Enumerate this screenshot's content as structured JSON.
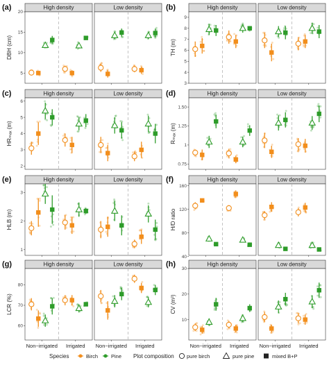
{
  "colors": {
    "birch": "#F28E1C",
    "pine": "#2E9C2A",
    "panel_border": "#333333",
    "strip_bg": "#D9D9D9",
    "divider": "#B5B5B5"
  },
  "strips": [
    "High density",
    "Low density"
  ],
  "x_categories": [
    "Non−irrigated",
    "Irrigated"
  ],
  "legend": {
    "species_title": "Species",
    "species": [
      {
        "key": "birch",
        "label": "Birch"
      },
      {
        "key": "pine",
        "label": "Pine"
      }
    ],
    "composition_title": "Plot composition",
    "composition": [
      {
        "key": "pure_birch",
        "label": "pure birch"
      },
      {
        "key": "pure_pine",
        "label": "pure pine"
      },
      {
        "key": "mixed",
        "label": "mixed B+P"
      }
    ]
  },
  "chart_data": [
    {
      "type": "scatter",
      "panel": "(a)",
      "ylabel": "DBH (cm)",
      "ylim": [
        2.5,
        20
      ],
      "yticks": [
        5,
        10,
        15,
        20
      ],
      "series": [
        {
          "density": "High density",
          "irrigation": "Non−irrigated",
          "birch_pure": [
            5.1,
            4.6,
            5.6
          ],
          "birch_mixed": [
            5.0,
            4.5,
            5.5
          ],
          "pine_pure": [
            11.8,
            11.2,
            12.4
          ],
          "pine_mixed": [
            13.1,
            12.2,
            14.1
          ]
        },
        {
          "density": "High density",
          "irrigation": "Irrigated",
          "birch_pure": [
            6.0,
            5.3,
            6.8
          ],
          "birch_mixed": [
            5.0,
            4.3,
            5.7
          ],
          "pine_pure": [
            11.7,
            11.0,
            12.4
          ],
          "pine_mixed": [
            13.6,
            13.3,
            13.9
          ]
        },
        {
          "density": "Low density",
          "irrigation": "Non−irrigated",
          "birch_pure": [
            6.3,
            5.3,
            7.3
          ],
          "birch_mixed": [
            4.8,
            3.9,
            5.7
          ],
          "pine_pure": [
            14.2,
            13.3,
            15.1
          ],
          "pine_mixed": [
            14.9,
            13.9,
            15.9
          ]
        },
        {
          "density": "Low density",
          "irrigation": "Irrigated",
          "birch_pure": [
            6.0,
            5.2,
            6.8
          ],
          "birch_mixed": [
            5.7,
            4.8,
            6.6
          ],
          "pine_pure": [
            14.2,
            13.3,
            15.1
          ],
          "pine_mixed": [
            14.8,
            13.7,
            15.9
          ]
        }
      ]
    },
    {
      "type": "scatter",
      "panel": "(b)",
      "ylabel": "TH (m)",
      "ylim": [
        3,
        9.5
      ],
      "yticks": [
        3,
        4,
        5,
        6,
        7,
        8,
        9
      ],
      "series": [
        {
          "density": "High density",
          "irrigation": "Non−irrigated",
          "birch_pure": [
            6.1,
            5.4,
            6.8
          ],
          "birch_mixed": [
            6.4,
            5.7,
            7.1
          ],
          "pine_pure": [
            7.9,
            7.4,
            8.4
          ],
          "pine_mixed": [
            7.8,
            7.3,
            8.3
          ]
        },
        {
          "density": "High density",
          "irrigation": "Irrigated",
          "birch_pure": [
            7.2,
            6.6,
            7.8
          ],
          "birch_mixed": [
            6.8,
            6.2,
            7.4
          ],
          "pine_pure": [
            8.0,
            7.6,
            8.4
          ],
          "pine_mixed": [
            8.0,
            7.8,
            8.2
          ]
        },
        {
          "density": "Low density",
          "irrigation": "Non−irrigated",
          "birch_pure": [
            6.9,
            6.2,
            7.6
          ],
          "birch_mixed": [
            5.8,
            5.0,
            6.6
          ],
          "pine_pure": [
            7.7,
            7.2,
            8.2
          ],
          "pine_mixed": [
            7.6,
            7.0,
            8.2
          ]
        },
        {
          "density": "Low density",
          "irrigation": "Irrigated",
          "birch_pure": [
            6.6,
            6.0,
            7.2
          ],
          "birch_mixed": [
            6.8,
            6.2,
            7.4
          ],
          "pine_pure": [
            8.0,
            7.5,
            8.5
          ],
          "pine_mixed": [
            7.7,
            7.1,
            8.3
          ]
        }
      ]
    },
    {
      "type": "scatter",
      "panel": "(c)",
      "ylabel": "HRₘₐₓ (m)",
      "ylim": [
        1.8,
        6.2
      ],
      "yticks": [
        2,
        3,
        4,
        5,
        6
      ],
      "series": [
        {
          "density": "High density",
          "irrigation": "Non−irrigated",
          "birch_pure": [
            3.1,
            2.7,
            3.5
          ],
          "birch_mixed": [
            4.0,
            3.3,
            4.7
          ],
          "pine_pure": [
            5.4,
            4.9,
            5.9
          ],
          "pine_mixed": [
            5.0,
            4.5,
            5.5
          ]
        },
        {
          "density": "High density",
          "irrigation": "Irrigated",
          "birch_pure": [
            3.6,
            3.2,
            4.0
          ],
          "birch_mixed": [
            3.3,
            2.8,
            3.8
          ],
          "pine_pure": [
            4.6,
            4.2,
            5.0
          ],
          "pine_mixed": [
            4.8,
            4.4,
            5.2
          ]
        },
        {
          "density": "Low density",
          "irrigation": "Non−irrigated",
          "birch_pure": [
            3.3,
            2.8,
            3.8
          ],
          "birch_mixed": [
            2.8,
            2.3,
            3.3
          ],
          "pine_pure": [
            4.5,
            4.0,
            5.0
          ],
          "pine_mixed": [
            4.2,
            3.7,
            4.7
          ]
        },
        {
          "density": "Low density",
          "irrigation": "Irrigated",
          "birch_pure": [
            2.6,
            2.3,
            2.9
          ],
          "birch_mixed": [
            3.0,
            2.5,
            3.5
          ],
          "pine_pure": [
            4.6,
            4.1,
            5.1
          ],
          "pine_mixed": [
            4.0,
            3.4,
            4.6
          ]
        }
      ]
    },
    {
      "type": "scatter",
      "panel": "(d)",
      "ylabel": "Rₘₐₓ (m)",
      "ylim": [
        0.68,
        1.62
      ],
      "yticks": [
        0.75,
        1.0,
        1.25,
        1.5
      ],
      "series": [
        {
          "density": "High density",
          "irrigation": "Non−irrigated",
          "birch_pure": [
            0.9,
            0.86,
            0.94
          ],
          "birch_mixed": [
            0.87,
            0.8,
            0.94
          ],
          "pine_pure": [
            1.04,
            0.96,
            1.12
          ],
          "pine_mixed": [
            1.31,
            1.22,
            1.4
          ]
        },
        {
          "density": "High density",
          "irrigation": "Irrigated",
          "birch_pure": [
            0.89,
            0.83,
            0.95
          ],
          "birch_mixed": [
            0.81,
            0.76,
            0.86
          ],
          "pine_pure": [
            1.04,
            0.97,
            1.11
          ],
          "pine_mixed": [
            1.19,
            1.12,
            1.26
          ]
        },
        {
          "density": "Low density",
          "irrigation": "Non−irrigated",
          "birch_pure": [
            1.06,
            0.96,
            1.16
          ],
          "birch_mixed": [
            0.91,
            0.83,
            0.99
          ],
          "pine_pure": [
            1.29,
            1.19,
            1.39
          ],
          "pine_mixed": [
            1.33,
            1.23,
            1.43
          ]
        },
        {
          "density": "Low density",
          "irrigation": "Irrigated",
          "birch_pure": [
            1.01,
            0.93,
            1.09
          ],
          "birch_mixed": [
            0.99,
            0.9,
            1.08
          ],
          "pine_pure": [
            1.29,
            1.2,
            1.38
          ],
          "pine_mixed": [
            1.41,
            1.3,
            1.52
          ]
        }
      ]
    },
    {
      "type": "scatter",
      "panel": "(e)",
      "ylabel": "HLB (m)",
      "ylim": [
        0.8,
        3.3
      ],
      "yticks": [
        1,
        2,
        3
      ],
      "series": [
        {
          "density": "High density",
          "irrigation": "Non−irrigated",
          "birch_pure": [
            1.75,
            1.5,
            2.0
          ],
          "birch_mixed": [
            2.3,
            1.8,
            2.8
          ],
          "pine_pure": [
            2.95,
            2.6,
            3.3
          ],
          "pine_mixed": [
            2.4,
            1.9,
            2.9
          ]
        },
        {
          "density": "High density",
          "irrigation": "Irrigated",
          "birch_pure": [
            1.95,
            1.7,
            2.2
          ],
          "birch_mixed": [
            1.85,
            1.55,
            2.15
          ],
          "pine_pure": [
            2.4,
            2.15,
            2.65
          ],
          "pine_mixed": [
            2.35,
            2.25,
            2.45
          ]
        },
        {
          "density": "Low density",
          "irrigation": "Non−irrigated",
          "birch_pure": [
            1.7,
            1.4,
            2.0
          ],
          "birch_mixed": [
            1.8,
            1.45,
            2.15
          ],
          "pine_pure": [
            2.35,
            2.0,
            2.7
          ],
          "pine_mixed": [
            1.85,
            1.5,
            2.2
          ]
        },
        {
          "density": "Low density",
          "irrigation": "Irrigated",
          "birch_pure": [
            1.2,
            1.05,
            1.35
          ],
          "birch_mixed": [
            1.45,
            1.2,
            1.7
          ],
          "pine_pure": [
            2.25,
            1.95,
            2.55
          ],
          "pine_mixed": [
            1.7,
            1.35,
            2.05
          ]
        }
      ]
    },
    {
      "type": "scatter",
      "panel": "(f)",
      "ylabel": "H/D ratio",
      "ylim": [
        42,
        163
      ],
      "yticks": [
        40,
        80,
        120,
        160
      ],
      "series": [
        {
          "density": "High density",
          "irrigation": "Non−irrigated",
          "birch_pure": [
            126,
            120,
            132
          ],
          "birch_mixed": [
            135,
            133,
            137
          ],
          "pine_pure": [
            70,
            67,
            73
          ],
          "pine_mixed": [
            61,
            59,
            63
          ]
        },
        {
          "density": "High density",
          "irrigation": "Irrigated",
          "birch_pure": [
            122,
            117,
            127
          ],
          "birch_mixed": [
            146,
            140,
            152
          ],
          "pine_pure": [
            68,
            65,
            71
          ],
          "pine_mixed": [
            60,
            58,
            62
          ]
        },
        {
          "density": "Low density",
          "irrigation": "Non−irrigated",
          "birch_pure": [
            110,
            103,
            117
          ],
          "birch_mixed": [
            124,
            116,
            132
          ],
          "pine_pure": [
            59,
            55,
            63
          ],
          "pine_mixed": [
            53,
            50,
            56
          ]
        },
        {
          "density": "Low density",
          "irrigation": "Irrigated",
          "birch_pure": [
            115,
            108,
            122
          ],
          "birch_mixed": [
            123,
            115,
            131
          ],
          "pine_pure": [
            59,
            55,
            63
          ],
          "pine_mixed": [
            52,
            49,
            55
          ]
        }
      ]
    },
    {
      "type": "scatter",
      "panel": "(g)",
      "ylabel": "LCR (%)",
      "ylim": [
        53,
        88
      ],
      "yticks": [
        60,
        70,
        80
      ],
      "series": [
        {
          "density": "High density",
          "irrigation": "Non−irrigated",
          "birch_pure": [
            70.5,
            67.5,
            73.5
          ],
          "birch_mixed": [
            63.5,
            59.5,
            67.5
          ],
          "pine_pure": [
            62.5,
            59.5,
            65.5
          ],
          "pine_mixed": [
            69.5,
            65.5,
            73.5
          ]
        },
        {
          "density": "High density",
          "irrigation": "Irrigated",
          "birch_pure": [
            72.5,
            70.0,
            75.0
          ],
          "birch_mixed": [
            72.5,
            70.0,
            75.0
          ],
          "pine_pure": [
            68.5,
            66.5,
            70.5
          ],
          "pine_mixed": [
            70.5,
            69.5,
            71.5
          ]
        },
        {
          "density": "Low density",
          "irrigation": "Non−irrigated",
          "birch_pure": [
            74.5,
            71.5,
            77.5
          ],
          "birch_mixed": [
            67.5,
            63.0,
            72.0
          ],
          "pine_pure": [
            72.0,
            69.0,
            75.0
          ],
          "pine_mixed": [
            75.5,
            72.5,
            78.5
          ]
        },
        {
          "density": "Low density",
          "irrigation": "Irrigated",
          "birch_pure": [
            83.0,
            81.0,
            85.0
          ],
          "birch_mixed": [
            78.5,
            76.0,
            81.0
          ],
          "pine_pure": [
            71.5,
            69.0,
            74.0
          ],
          "pine_mixed": [
            77.5,
            75.0,
            80.0
          ]
        }
      ]
    },
    {
      "type": "scatter",
      "panel": "(h)",
      "ylabel": "CV (m³)",
      "ylim": [
        2,
        30
      ],
      "yticks": [
        10,
        20,
        30
      ],
      "series": [
        {
          "density": "High density",
          "irrigation": "Non−irrigated",
          "birch_pure": [
            7.0,
            5.5,
            8.5
          ],
          "birch_mixed": [
            6.0,
            4.5,
            7.5
          ],
          "pine_pure": [
            9.0,
            7.5,
            10.5
          ],
          "pine_mixed": [
            16.0,
            13.5,
            18.5
          ]
        },
        {
          "density": "High density",
          "irrigation": "Irrigated",
          "birch_pure": [
            8.0,
            6.5,
            9.5
          ],
          "birch_mixed": [
            6.5,
            5.0,
            8.0
          ],
          "pine_pure": [
            10.5,
            9.0,
            12.0
          ],
          "pine_mixed": [
            14.5,
            13.0,
            16.0
          ]
        },
        {
          "density": "Low density",
          "irrigation": "Non−irrigated",
          "birch_pure": [
            11.0,
            9.0,
            13.0
          ],
          "birch_mixed": [
            6.5,
            5.0,
            8.0
          ],
          "pine_pure": [
            15.0,
            12.5,
            17.5
          ],
          "pine_mixed": [
            18.0,
            15.5,
            20.5
          ]
        },
        {
          "density": "Low density",
          "irrigation": "Irrigated",
          "birch_pure": [
            10.5,
            8.5,
            12.5
          ],
          "birch_mixed": [
            10.0,
            8.0,
            12.0
          ],
          "pine_pure": [
            17.0,
            14.5,
            19.5
          ],
          "pine_mixed": [
            21.5,
            18.5,
            24.5
          ]
        }
      ]
    }
  ]
}
